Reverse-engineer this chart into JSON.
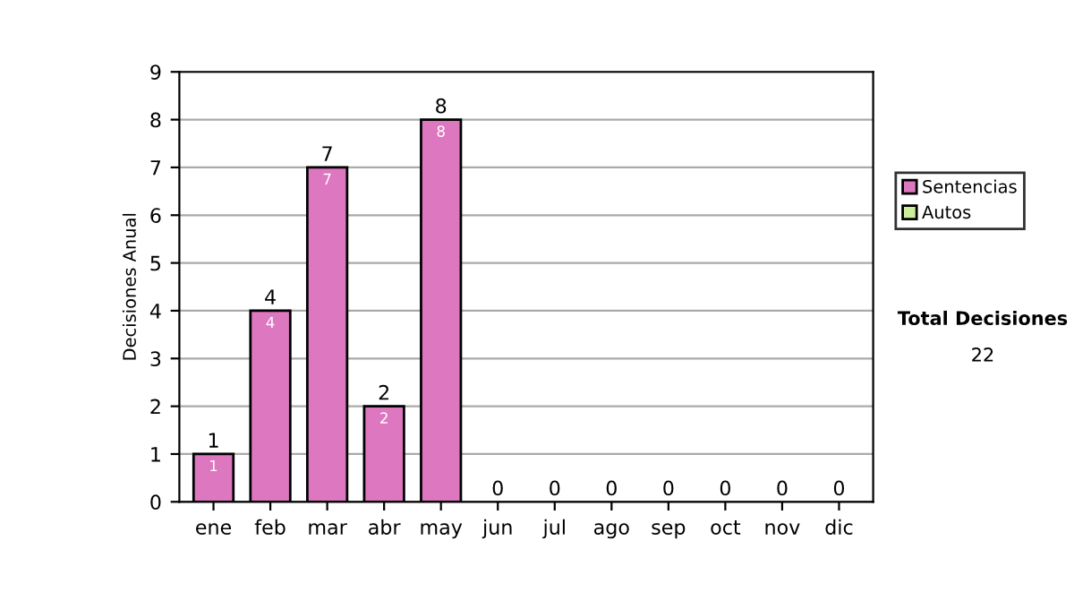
{
  "chart_data": {
    "type": "bar",
    "stacked": true,
    "ylabel": "Decisiones Anual",
    "categories": [
      "ene",
      "feb",
      "mar",
      "abr",
      "may",
      "jun",
      "jul",
      "ago",
      "sep",
      "oct",
      "nov",
      "dic"
    ],
    "series": [
      {
        "name": "Sentencias",
        "color": "#dd77c0",
        "values": [
          1,
          4,
          7,
          2,
          8,
          0,
          0,
          0,
          0,
          0,
          0,
          0
        ],
        "value_labels": [
          "1",
          "4",
          "7",
          "2",
          "8",
          null,
          null,
          null,
          null,
          null,
          null,
          null
        ]
      },
      {
        "name": "Autos",
        "color": "#ccee99",
        "values": [
          0,
          0,
          0,
          0,
          0,
          0,
          0,
          0,
          0,
          0,
          0,
          0
        ]
      }
    ],
    "totals": [
      "1",
      "4",
      "7",
      "2",
      "8",
      "0",
      "0",
      "0",
      "0",
      "0",
      "0",
      "0"
    ],
    "ylim": [
      0,
      9
    ],
    "yticks": [
      0,
      1,
      2,
      3,
      4,
      5,
      6,
      7,
      8,
      9
    ],
    "grid": "y",
    "legend": "right",
    "annotations": [
      "Total Decisiones",
      "22"
    ]
  }
}
